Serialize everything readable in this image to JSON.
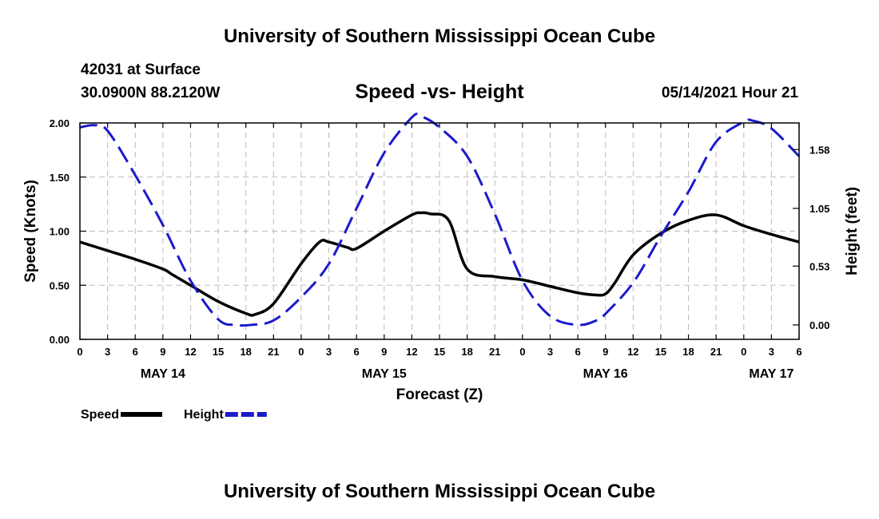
{
  "header": {
    "title_top": "University of Southern Mississippi Ocean Cube",
    "station": "42031 at Surface",
    "coords": "30.0900N  88.2120W",
    "subtitle": "Speed -vs- Height",
    "datetime": "05/14/2021 Hour 21",
    "title_bottom": "University of Southern Mississippi Ocean Cube"
  },
  "colors": {
    "speed": "#000000",
    "height": "#1a1acc",
    "grid": "#bbbbbb",
    "axis": "#000000"
  },
  "chart_data": {
    "type": "line",
    "title": "Speed -vs- Height",
    "xlabel": "Forecast (Z)",
    "ylabel_left": "Speed (Knots)",
    "ylabel_right": "Height (feet)",
    "xlim": [
      0,
      78
    ],
    "ylim_left": [
      0,
      2.0
    ],
    "ylim_right": [
      -0.13,
      1.82
    ],
    "x_tick_hours": [
      0,
      3,
      6,
      9,
      12,
      15,
      18,
      21,
      24,
      27,
      30,
      33,
      36,
      39,
      42,
      45,
      48,
      51,
      54,
      57,
      60,
      63,
      66,
      69,
      72,
      75,
      78
    ],
    "x_tick_labels": [
      "0",
      "3",
      "6",
      "9",
      "12",
      "15",
      "18",
      "21",
      "0",
      "3",
      "6",
      "9",
      "12",
      "15",
      "18",
      "21",
      "0",
      "3",
      "6",
      "9",
      "12",
      "15",
      "18",
      "21",
      "0",
      "3",
      "6"
    ],
    "y_left_ticks": [
      0.0,
      0.5,
      1.0,
      1.5,
      2.0
    ],
    "y_left_tick_labels": [
      "0.00",
      "0.50",
      "1.00",
      "1.50",
      "2.00"
    ],
    "y_right_ticks": [
      0.0,
      0.53,
      1.05,
      1.58
    ],
    "y_right_tick_labels": [
      "0.00",
      "0.53",
      "1.05",
      "1.58"
    ],
    "day_labels": [
      {
        "hour": 9,
        "label": "MAY 14"
      },
      {
        "hour": 33,
        "label": "MAY 15"
      },
      {
        "hour": 57,
        "label": "MAY 16"
      },
      {
        "hour": 75,
        "label": "MAY 17"
      }
    ],
    "series": [
      {
        "name": "Speed",
        "axis": "left",
        "style": "solid",
        "x": [
          0,
          3,
          6,
          9,
          10,
          12,
          15,
          18,
          19,
          21,
          24,
          26,
          27,
          29,
          30,
          33,
          36,
          37,
          38,
          40,
          42,
          45,
          48,
          51,
          54,
          56,
          57,
          58,
          60,
          63,
          66,
          69,
          72,
          75,
          78
        ],
        "y": [
          0.9,
          0.82,
          0.74,
          0.65,
          0.6,
          0.5,
          0.35,
          0.24,
          0.23,
          0.33,
          0.7,
          0.9,
          0.9,
          0.85,
          0.84,
          1.0,
          1.15,
          1.17,
          1.16,
          1.1,
          0.65,
          0.58,
          0.55,
          0.49,
          0.43,
          0.41,
          0.42,
          0.52,
          0.78,
          0.98,
          1.1,
          1.15,
          1.05,
          0.97,
          0.9
        ]
      },
      {
        "name": "Height",
        "axis": "right",
        "style": "dashed",
        "x": [
          0,
          1.5,
          3,
          6,
          9,
          12,
          15,
          17,
          18.5,
          21,
          24,
          27,
          30,
          33,
          36,
          37,
          39,
          42,
          45,
          48,
          51,
          54,
          56,
          57,
          60,
          63,
          66,
          69,
          72,
          73,
          75,
          78
        ],
        "y": [
          1.78,
          1.8,
          1.75,
          1.35,
          0.9,
          0.4,
          0.05,
          0.0,
          0.0,
          0.04,
          0.25,
          0.55,
          1.05,
          1.55,
          1.87,
          1.88,
          1.78,
          1.52,
          1.0,
          0.4,
          0.08,
          0.0,
          0.04,
          0.1,
          0.38,
          0.8,
          1.2,
          1.65,
          1.83,
          1.84,
          1.77,
          1.52
        ]
      }
    ],
    "legend": [
      {
        "label": "Speed",
        "series": "Speed"
      },
      {
        "label": "Height",
        "series": "Height"
      }
    ]
  }
}
